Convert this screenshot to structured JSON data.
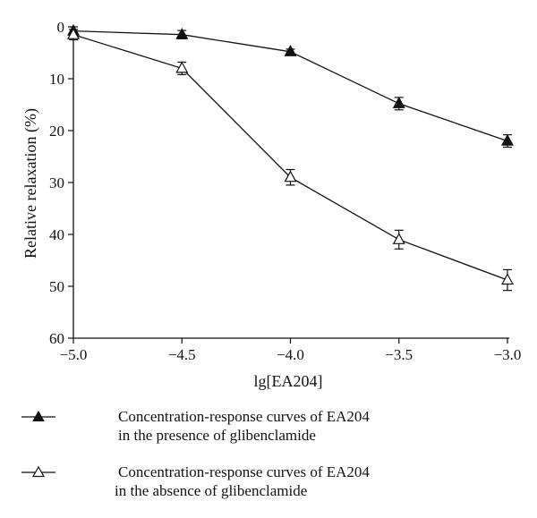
{
  "chart_data": {
    "type": "line",
    "title": "",
    "xlabel": "lg[EA204]",
    "ylabel": "Relative relaxation (%)",
    "x": [
      -5.0,
      -4.5,
      -4.0,
      -3.5,
      -3.0
    ],
    "xlim": [
      -5.0,
      -3.0
    ],
    "ylim": [
      60,
      0
    ],
    "y_inverted": true,
    "x_ticks": [
      "−5.0",
      "−4.5",
      "−4.0",
      "−3.5",
      "−3.0"
    ],
    "y_ticks": [
      "0",
      "10",
      "20",
      "30",
      "40",
      "50",
      "60"
    ],
    "grid": false,
    "legend_position": "bottom",
    "series": [
      {
        "name_line1": "Concentration-response curves of EA204",
        "name_line2": "in the presence of glibenclamide",
        "marker": "filled-triangle",
        "values": [
          0.8,
          1.5,
          4.8,
          14.8,
          22.0
        ],
        "errors": [
          0.8,
          0.8,
          0.5,
          1.2,
          1.2
        ]
      },
      {
        "name_line1": "Concentration-response curves of EA204",
        "name_line2": "in the absence of glibenclamide",
        "marker": "open-triangle",
        "values": [
          1.5,
          8.0,
          29.0,
          41.0,
          48.8
        ],
        "errors": [
          1.0,
          1.2,
          1.5,
          1.8,
          2.0
        ]
      }
    ],
    "colors": {
      "line": "#111111",
      "background": "#ffffff"
    }
  }
}
